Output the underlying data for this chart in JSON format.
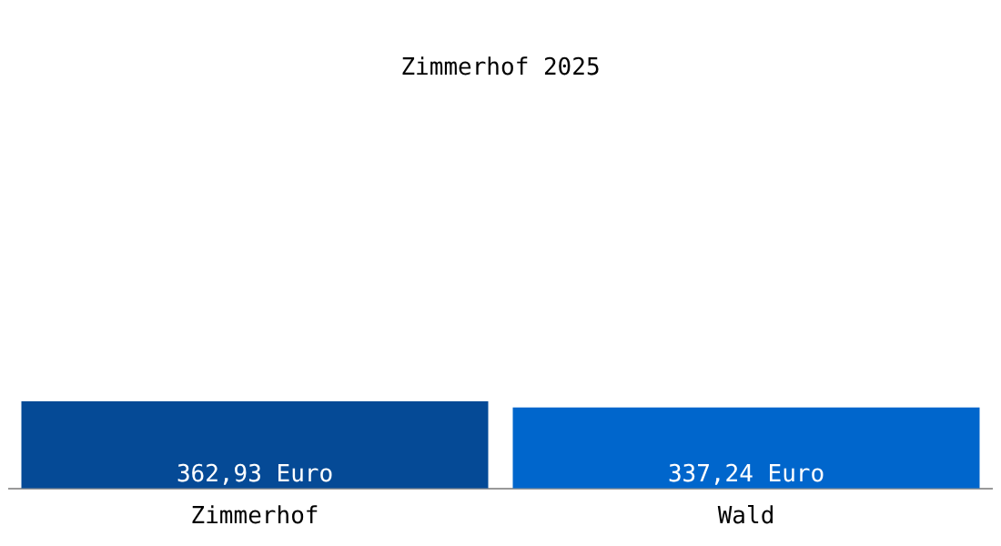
{
  "chart_data": {
    "type": "bar",
    "title": "Zimmerhof 2025",
    "categories": [
      "Zimmerhof",
      "Wald"
    ],
    "values": [
      362.93,
      337.24
    ],
    "colors": [
      "#054a96",
      "#0066cc"
    ],
    "value_labels": [
      "362,93 Euro",
      "337,24 Euro"
    ],
    "tick_labels": "x",
    "grid": false,
    "legend": false
  }
}
